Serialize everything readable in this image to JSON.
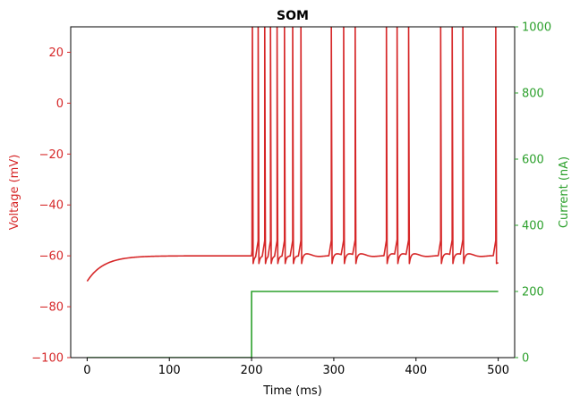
{
  "chart_data": {
    "type": "line",
    "title": "SOM",
    "xlabel": "Time (ms)",
    "ylabel_left": "Voltage (mV)",
    "ylabel_right": "Current (nA)",
    "xlim": [
      -20,
      520
    ],
    "ylim_left": [
      -100,
      30
    ],
    "ylim_right": [
      0,
      1000
    ],
    "x_ticks": [
      0,
      100,
      200,
      300,
      400,
      500
    ],
    "y_ticks_left": [
      20,
      0,
      -20,
      -40,
      -60,
      -80,
      -100
    ],
    "y_ticks_right": [
      0,
      200,
      400,
      600,
      800,
      1000
    ],
    "colors": {
      "voltage": "#d62728",
      "current": "#2ca02c",
      "axis": "#000000"
    },
    "series": [
      {
        "name": "Voltage",
        "axis": "left",
        "model": {
          "v_start": -70,
          "v_rest": -60,
          "tau_ms": 20,
          "stim_onset_ms": 200,
          "end_ms": 500,
          "v_peak": 30,
          "v_reset": -63,
          "v_plateau": -60
        },
        "spike_times_ms": [
          201,
          208,
          216,
          223,
          231,
          240,
          250,
          260,
          297,
          312,
          326,
          364,
          377,
          391,
          430,
          444,
          457,
          497
        ]
      },
      {
        "name": "Current",
        "axis": "right",
        "x": [
          0,
          200,
          200,
          500
        ],
        "values": [
          0,
          0,
          200,
          200
        ]
      }
    ]
  }
}
